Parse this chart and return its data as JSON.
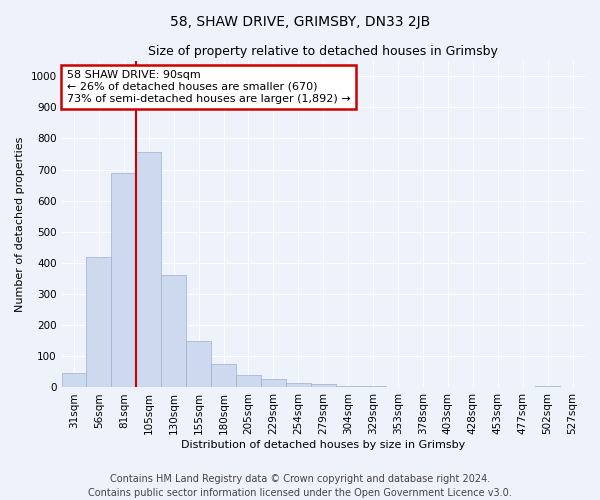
{
  "title": "58, SHAW DRIVE, GRIMSBY, DN33 2JB",
  "subtitle": "Size of property relative to detached houses in Grimsby",
  "xlabel": "Distribution of detached houses by size in Grimsby",
  "ylabel": "Number of detached properties",
  "categories": [
    "31sqm",
    "56sqm",
    "81sqm",
    "105sqm",
    "130sqm",
    "155sqm",
    "180sqm",
    "205sqm",
    "229sqm",
    "254sqm",
    "279sqm",
    "304sqm",
    "329sqm",
    "353sqm",
    "378sqm",
    "403sqm",
    "428sqm",
    "453sqm",
    "477sqm",
    "502sqm",
    "527sqm"
  ],
  "values": [
    47,
    420,
    690,
    755,
    360,
    150,
    75,
    40,
    27,
    14,
    10,
    6,
    4,
    3,
    2,
    1,
    0,
    0,
    0,
    4,
    3
  ],
  "bar_color": "#ccd9ee",
  "bar_edge_color": "#9ab0d0",
  "red_line_bar_index": 2,
  "annotation_text": "58 SHAW DRIVE: 90sqm\n← 26% of detached houses are smaller (670)\n73% of semi-detached houses are larger (1,892) →",
  "annotation_box_facecolor": "#ffffff",
  "annotation_box_edgecolor": "#cc0000",
  "ylim": [
    0,
    1050
  ],
  "yticks": [
    0,
    100,
    200,
    300,
    400,
    500,
    600,
    700,
    800,
    900,
    1000
  ],
  "footer_line1": "Contains HM Land Registry data © Crown copyright and database right 2024.",
  "footer_line2": "Contains public sector information licensed under the Open Government Licence v3.0.",
  "background_color": "#eef2fb",
  "grid_color": "#ffffff",
  "red_line_color": "#cc0000",
  "title_fontsize": 10,
  "subtitle_fontsize": 9,
  "axis_label_fontsize": 8,
  "tick_fontsize": 7.5,
  "annotation_fontsize": 8,
  "footer_fontsize": 7
}
